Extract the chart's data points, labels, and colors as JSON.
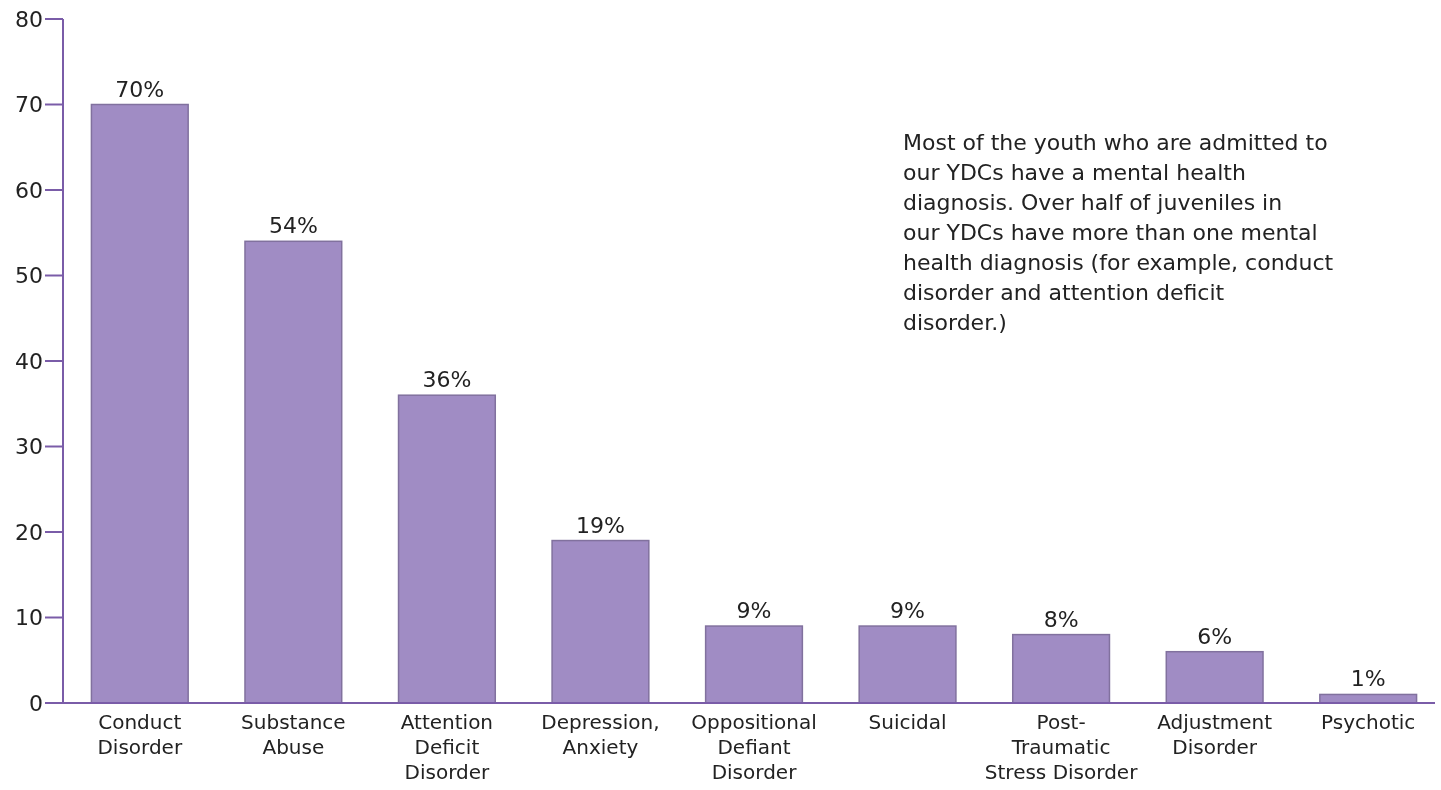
{
  "chart_data": {
    "type": "bar",
    "categories": [
      "Conduct\nDisorder",
      "Substance\nAbuse",
      "Attention\nDeficit\nDisorder",
      "Depression,\nAnxiety",
      "Oppositional\nDefiant\nDisorder",
      "Suicidal",
      "Post-\nTraumatic\nStress Disorder",
      "Adjustment\nDisorder",
      "Psychotic"
    ],
    "values": [
      70,
      54,
      36,
      19,
      9,
      9,
      8,
      6,
      1
    ],
    "value_labels": [
      "70%",
      "54%",
      "36%",
      "19%",
      "9%",
      "9%",
      "8%",
      "6%",
      "1%"
    ],
    "color": "#a08cc4",
    "ylim": [
      0,
      80
    ],
    "yticks": [
      0,
      10,
      20,
      30,
      40,
      50,
      60,
      70,
      80
    ],
    "grid": false,
    "annotations": [
      "Most of the youth who are admitted to our YDCs have a mental health diagnosis. Over half of juveniles in our YDCs have more than one mental health diagnosis (for example, conduct disorder and attention deficit disorder.)"
    ]
  }
}
